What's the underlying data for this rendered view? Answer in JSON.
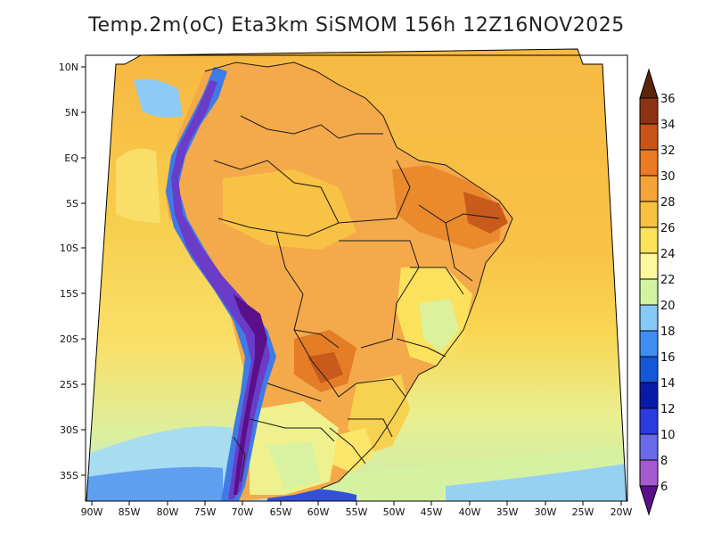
{
  "title": "Temp.2m(oC) Eta3km SiSMOM 156h 12Z16NOV2025",
  "map": {
    "variable": "2 m temperature",
    "units": "oC",
    "region": "South America",
    "lat_labels": [
      "10N",
      "5N",
      "EQ",
      "5S",
      "10S",
      "15S",
      "20S",
      "25S",
      "30S",
      "35S"
    ],
    "lon_labels": [
      "90W",
      "85W",
      "80W",
      "75W",
      "70W",
      "65W",
      "60W",
      "55W",
      "50W",
      "45W",
      "40W",
      "35W",
      "30W",
      "25W",
      "20W"
    ]
  },
  "colorbar": {
    "labels": [
      "6",
      "8",
      "10",
      "12",
      "14",
      "16",
      "18",
      "20",
      "22",
      "24",
      "26",
      "28",
      "30",
      "32",
      "34",
      "36"
    ],
    "colors": [
      "#7b1fa2",
      "#a65ad0",
      "#6a6be8",
      "#2a3be0",
      "#0a1aa8",
      "#1457d8",
      "#3e8ef2",
      "#86c8f6",
      "#d2f3a0",
      "#fdf7a0",
      "#fbe35a",
      "#f8c140",
      "#f5a437",
      "#eb7a22",
      "#c85419",
      "#8c3311"
    ],
    "under_color": "#5a108a",
    "over_color": "#5e2409"
  },
  "colors": {
    "ocean_warm": "#f6b946",
    "ocean_mid": "#f9d24e",
    "ocean_cool": "#d7f0a3",
    "land_hot": "#ef9a33",
    "andes_cold": "#5a1f9a",
    "border": "#1a1a1a"
  }
}
